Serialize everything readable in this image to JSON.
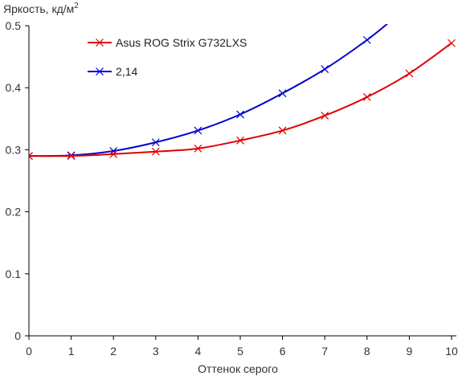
{
  "chart_data": {
    "type": "line",
    "ylabel": "Яркость, кд/м",
    "ylabel_sup": "2",
    "xlabel": "Оттенок серого",
    "xlim": [
      0,
      10
    ],
    "ylim": [
      0,
      0.5
    ],
    "x_ticks": [
      "0",
      "1",
      "2",
      "3",
      "4",
      "5",
      "6",
      "7",
      "8",
      "9",
      "10"
    ],
    "y_ticks": [
      "0",
      "0.1",
      "0.2",
      "0.3",
      "0.4",
      "0.5"
    ],
    "grid": false,
    "legend_position": "top-left",
    "series": [
      {
        "name": "Asus ROG Strix G732LXS",
        "color": "#e00000",
        "marker": "x",
        "x": [
          0,
          1,
          2,
          3,
          4,
          5,
          6,
          7,
          8,
          9,
          10
        ],
        "y": [
          0.29,
          0.29,
          0.293,
          0.297,
          0.302,
          0.315,
          0.331,
          0.355,
          0.385,
          0.423,
          0.472
        ]
      },
      {
        "name": "2,14",
        "color": "#0000d0",
        "marker": "x",
        "x": [
          0,
          1,
          2,
          3,
          4,
          5,
          6,
          7,
          8,
          8.6
        ],
        "y": [
          0.29,
          0.291,
          0.298,
          0.312,
          0.331,
          0.357,
          0.391,
          0.43,
          0.477,
          0.51
        ],
        "marker_points": 9
      }
    ]
  }
}
